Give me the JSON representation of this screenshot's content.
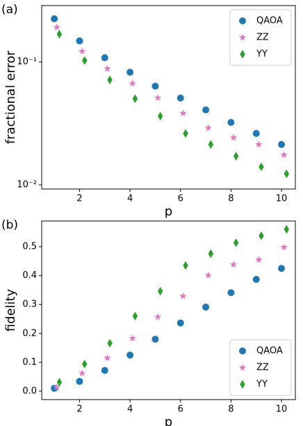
{
  "chart_data": [
    {
      "type": "scatter",
      "panel_label": "(a)",
      "xlabel": "p",
      "ylabel": "fractional error",
      "yscale": "log",
      "legend": "upper right",
      "xlim": [
        0.5,
        10.55
      ],
      "xticks": [
        2,
        4,
        6,
        8,
        10
      ],
      "ylim": [
        0.00925,
        0.287
      ],
      "yticks": [
        {
          "value": 0.01,
          "label": "10⁻²"
        },
        {
          "value": 0.1,
          "label": "10⁻¹"
        }
      ],
      "series": [
        {
          "name": "QAOA",
          "color": "#1f77b4",
          "marker": "circle",
          "x": [
            1,
            2,
            3,
            4,
            5,
            6,
            7,
            8,
            9,
            10
          ],
          "values": [
            0.224,
            0.148,
            0.108,
            0.0823,
            0.0634,
            0.0508,
            0.0407,
            0.0322,
            0.0262,
            0.0213
          ]
        },
        {
          "name": "ZZ",
          "color": "#e377c2",
          "marker": "star",
          "x": [
            1.1,
            2.1,
            3.1,
            4.1,
            5.1,
            6.1,
            7.1,
            8.1,
            9.1,
            10.1
          ],
          "values": [
            0.191,
            0.122,
            0.088,
            0.0668,
            0.051,
            0.0382,
            0.029,
            0.0242,
            0.0213,
            0.0175
          ]
        },
        {
          "name": "YY",
          "color": "#2ca02c",
          "marker": "diamond",
          "x": [
            1.2,
            2.2,
            3.2,
            4.2,
            5.2,
            6.2,
            7.2,
            8.2,
            9.2,
            10.2
          ],
          "values": [
            0.168,
            0.1025,
            0.0713,
            0.0502,
            0.0362,
            0.0262,
            0.0213,
            0.0171,
            0.014,
            0.0123
          ]
        }
      ]
    },
    {
      "type": "scatter",
      "panel_label": "(b)",
      "xlabel": "p",
      "ylabel": "fidelity",
      "yscale": "linear",
      "legend": "lower right",
      "xlim": [
        0.5,
        10.55
      ],
      "xticks": [
        2,
        4,
        6,
        8,
        10
      ],
      "ylim": [
        -0.029,
        0.589
      ],
      "yticks": [
        {
          "value": 0,
          "label": "0.0"
        },
        0.1,
        0.2,
        0.3,
        0.4,
        0.5
      ],
      "series": [
        {
          "name": "QAOA",
          "color": "#1f77b4",
          "marker": "circle",
          "x": [
            1,
            2,
            3,
            4,
            5,
            6,
            7,
            8,
            9,
            10
          ],
          "values": [
            0.01,
            0.034,
            0.072,
            0.125,
            0.18,
            0.236,
            0.291,
            0.341,
            0.387,
            0.425
          ]
        },
        {
          "name": "ZZ",
          "color": "#e377c2",
          "marker": "star",
          "x": [
            1.1,
            2.1,
            3.1,
            4.1,
            5.1,
            6.1,
            7.1,
            8.1,
            9.1,
            10.1
          ],
          "values": [
            0.014,
            0.062,
            0.115,
            0.183,
            0.257,
            0.329,
            0.401,
            0.438,
            0.455,
            0.498
          ]
        },
        {
          "name": "YY",
          "color": "#2ca02c",
          "marker": "diamond",
          "x": [
            1.2,
            2.2,
            3.2,
            4.2,
            5.2,
            6.2,
            7.2,
            8.2,
            9.2,
            10.2
          ],
          "values": [
            0.031,
            0.094,
            0.166,
            0.26,
            0.346,
            0.435,
            0.476,
            0.514,
            0.538,
            0.56
          ]
        }
      ]
    }
  ]
}
